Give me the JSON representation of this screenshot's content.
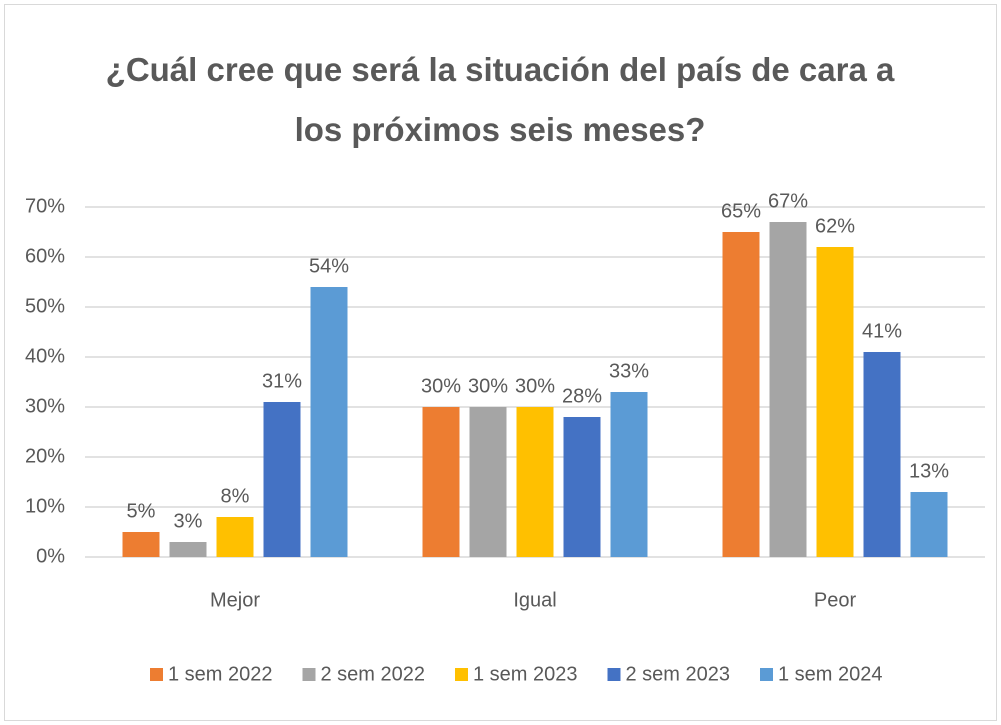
{
  "chart_data": {
    "type": "bar",
    "title": "¿Cuál cree que será la situación del país de cara a los próximos seis meses?",
    "categories": [
      "Mejor",
      "Igual",
      "Peor"
    ],
    "series": [
      {
        "name": "1 sem 2022",
        "color": "#ed7d31",
        "values": [
          5,
          30,
          65
        ],
        "value_labels": [
          "5%",
          "30%",
          "65%"
        ]
      },
      {
        "name": "2 sem 2022",
        "color": "#a5a5a5",
        "values": [
          3,
          30,
          67
        ],
        "value_labels": [
          "3%",
          "30%",
          "67%"
        ]
      },
      {
        "name": "1 sem 2023",
        "color": "#ffc000",
        "values": [
          8,
          30,
          62
        ],
        "value_labels": [
          "8%",
          "30%",
          "62%"
        ]
      },
      {
        "name": "2 sem 2023",
        "color": "#4472c4",
        "values": [
          31,
          28,
          41
        ],
        "value_labels": [
          "31%",
          "28%",
          "41%"
        ]
      },
      {
        "name": "1 sem 2024",
        "color": "#5b9bd5",
        "values": [
          54,
          33,
          13
        ],
        "value_labels": [
          "54%",
          "33%",
          "13%"
        ]
      }
    ],
    "ylim": [
      0,
      70
    ],
    "yticks": [
      {
        "value": 0,
        "label": "0%"
      },
      {
        "value": 10,
        "label": "10%"
      },
      {
        "value": 20,
        "label": "20%"
      },
      {
        "value": 30,
        "label": "30%"
      },
      {
        "value": 40,
        "label": "40%"
      },
      {
        "value": 50,
        "label": "50%"
      },
      {
        "value": 60,
        "label": "60%"
      },
      {
        "value": 70,
        "label": "70%"
      }
    ],
    "grid": true,
    "legend": "bottom"
  }
}
